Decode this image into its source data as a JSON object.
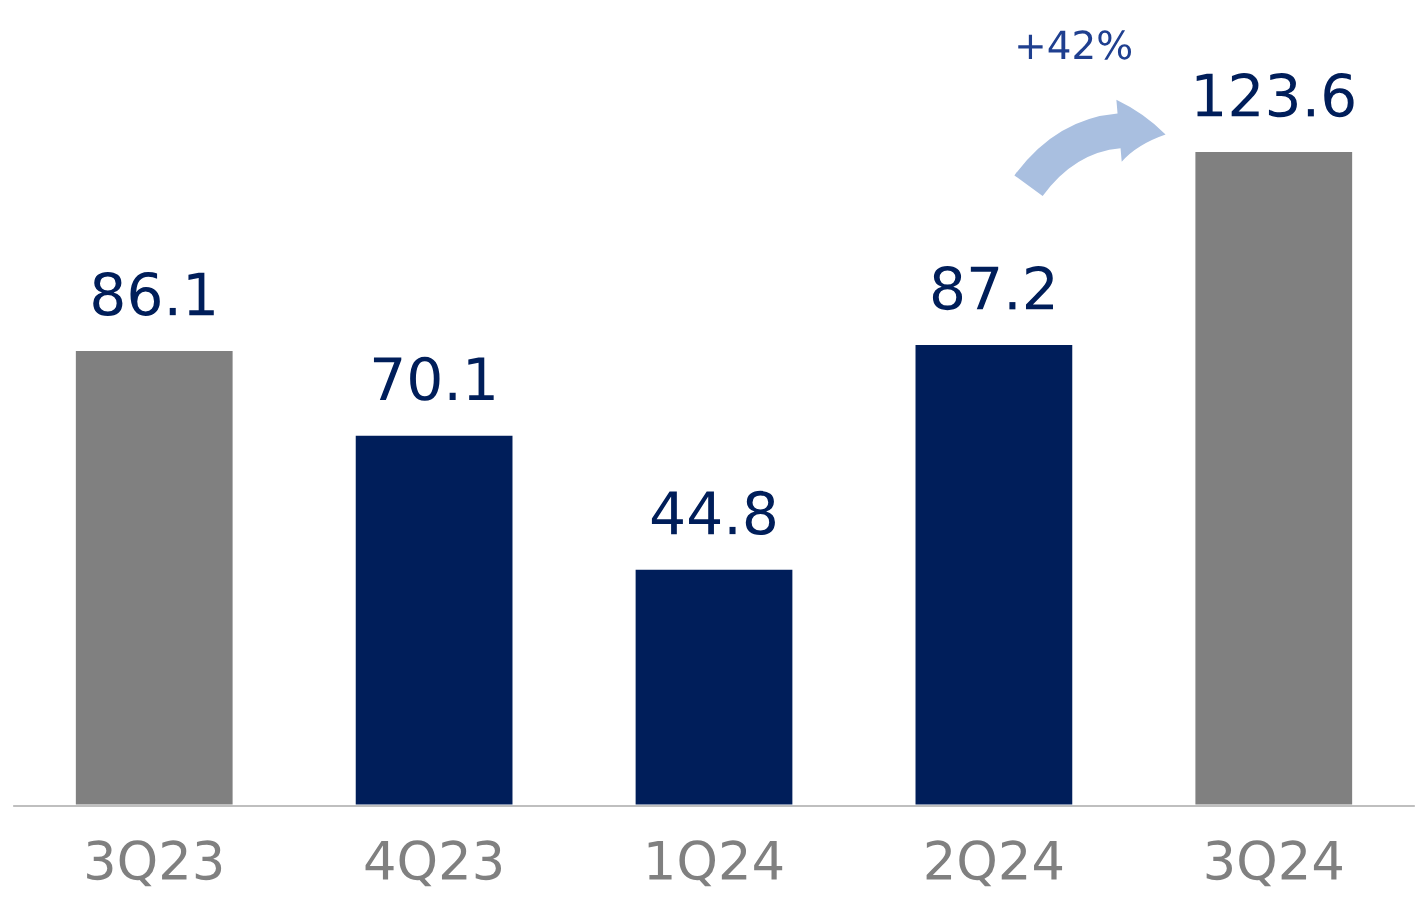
{
  "chart_data": {
    "type": "bar",
    "categories": [
      "3Q23",
      "4Q23",
      "1Q24",
      "2Q24",
      "3Q24"
    ],
    "values": [
      86.1,
      70.1,
      44.8,
      87.2,
      123.6
    ],
    "colors": [
      "#808080",
      "#001e5a",
      "#001e5a",
      "#001e5a",
      "#808080"
    ],
    "data_labels": true,
    "grid": false,
    "legend": false,
    "annotations": [
      "+42%"
    ]
  }
}
